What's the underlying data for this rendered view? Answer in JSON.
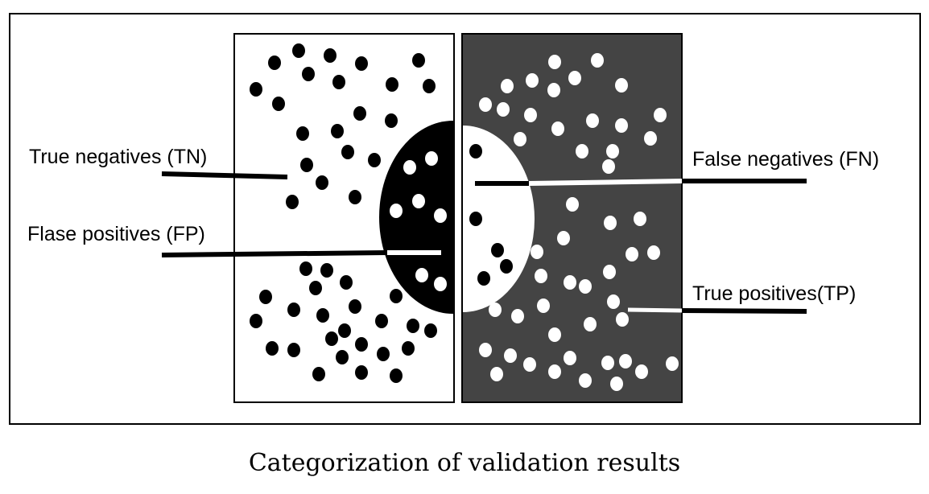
{
  "labels": {
    "tn": "True negatives (TN)",
    "fp": "Flase positives (FP)",
    "fn": "False negatives (FN)",
    "tp": "True positives(TP)"
  },
  "caption": "Categorization of validation results",
  "colors": {
    "negative_region": "#ffffff",
    "positive_region": "#444444",
    "negative_dot": "#000000",
    "positive_dot": "#ffffff",
    "frame": "#000000"
  }
}
